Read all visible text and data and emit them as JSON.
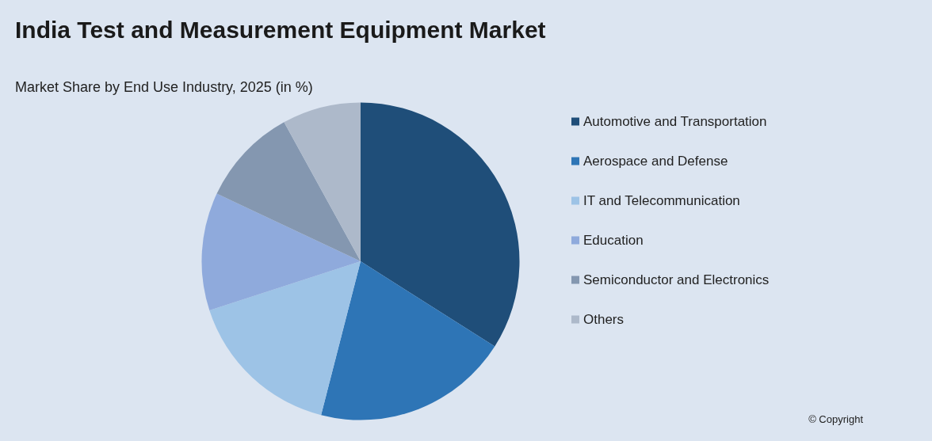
{
  "chart_data": {
    "type": "pie",
    "title": "India Test and Measurement Equipment Market",
    "subtitle": "Market Share by End Use Industry, 2025 (in %)",
    "categories": [
      "Automotive and Transportation",
      "Aerospace and Defense",
      "IT and Telecommunication",
      "Education",
      "Semiconductor and Electronics",
      "Others"
    ],
    "values": [
      34,
      20,
      16,
      12,
      10,
      8
    ],
    "colors": [
      "#1f4e79",
      "#2e75b6",
      "#9dc3e6",
      "#8faadc",
      "#8497b0",
      "#adb9ca"
    ],
    "legend": "right",
    "annotations": [
      "© Copyright"
    ]
  }
}
